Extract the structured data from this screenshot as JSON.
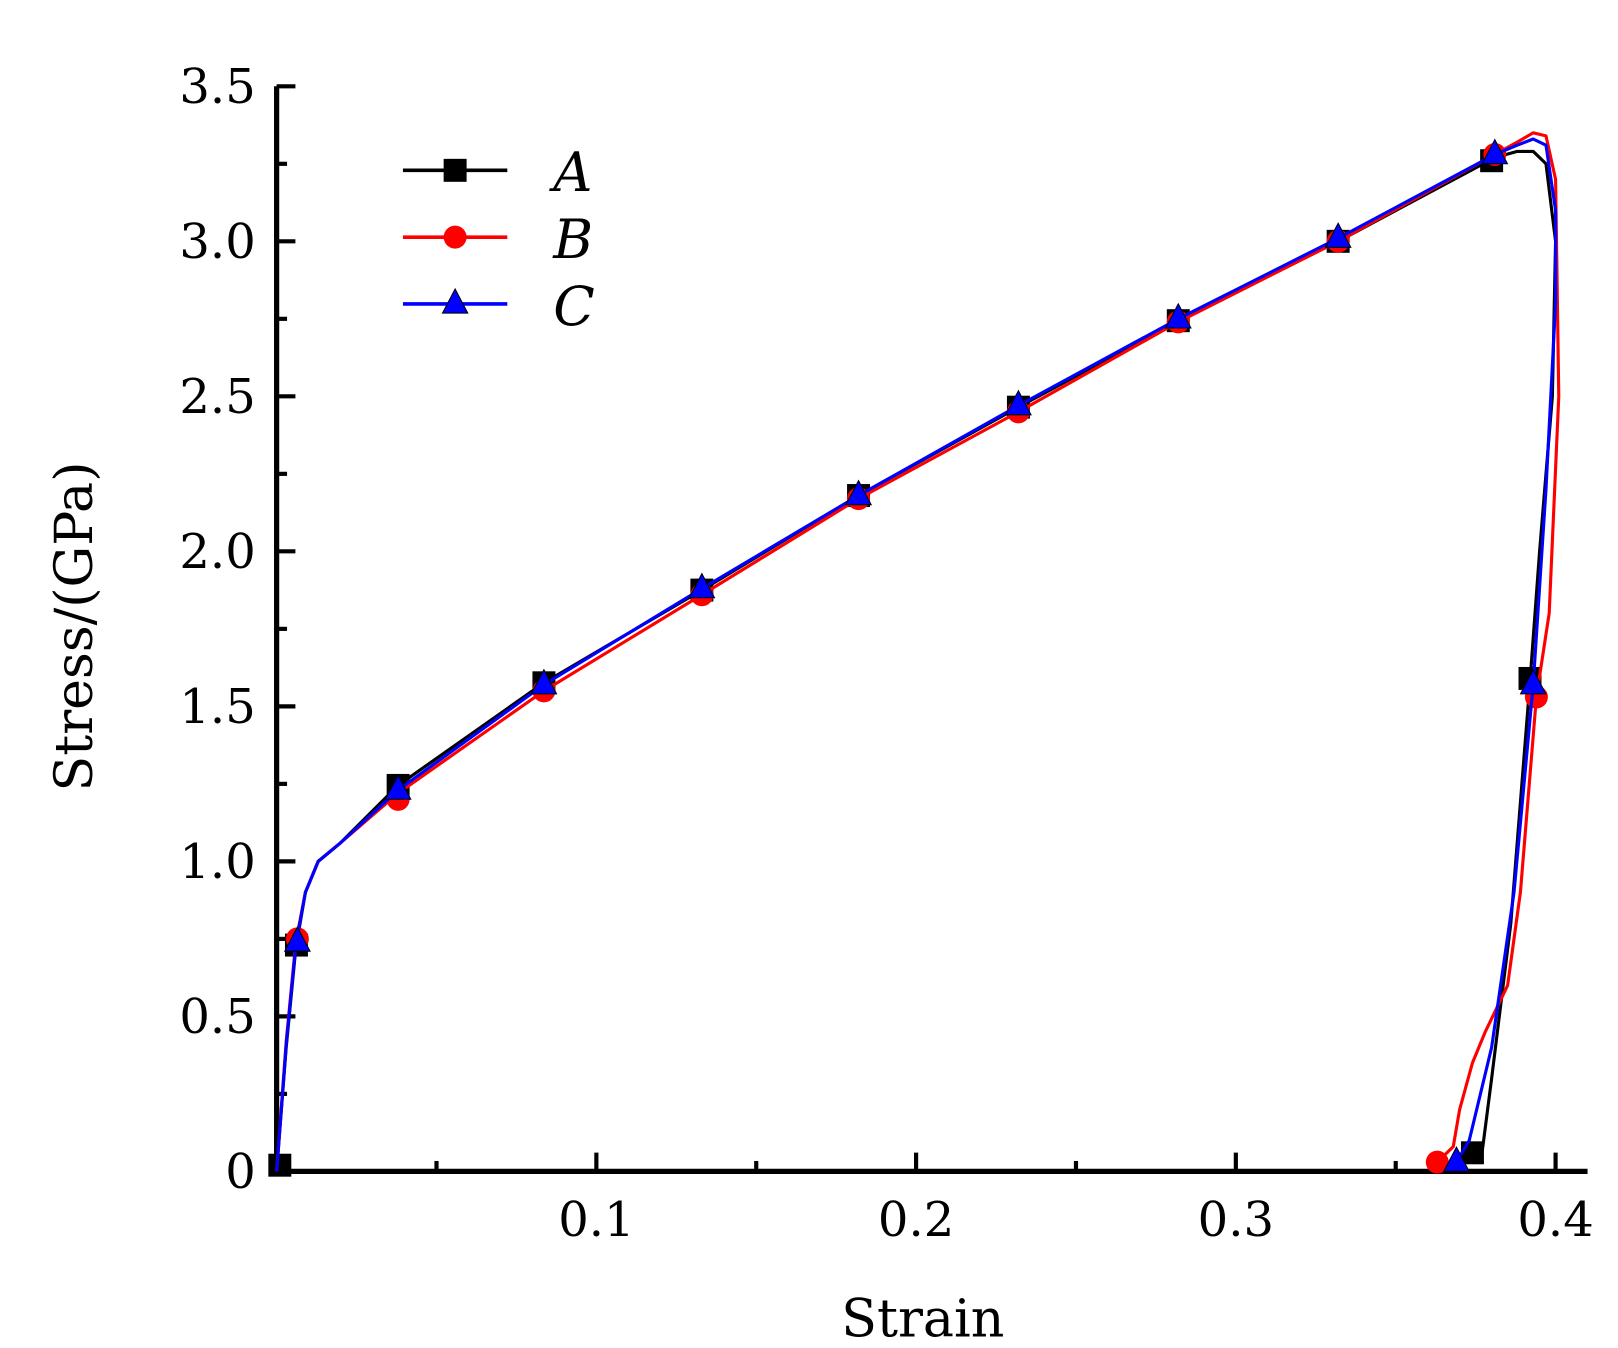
{
  "chart_data": {
    "type": "line",
    "title": "",
    "xlabel": "Strain",
    "ylabel": "Stress/(GPa)",
    "xlim": [
      0,
      0.41
    ],
    "ylim": [
      0,
      3.5
    ],
    "xticks": [
      0.1,
      0.2,
      0.3,
      0.4
    ],
    "xtick_labels": [
      "0.1",
      "0.2",
      "0.3",
      "0.4"
    ],
    "yticks": [
      0,
      0.5,
      1.0,
      1.5,
      2.0,
      2.5,
      3.0,
      3.5
    ],
    "ytick_labels": [
      "0",
      "0.5",
      "1.0",
      "1.5",
      "2.0",
      "2.5",
      "3.0",
      "3.5"
    ],
    "grid": false,
    "legend_position": "top-left",
    "series": [
      {
        "name": "A",
        "color": "#000000",
        "marker": "square",
        "line": [
          [
            0,
            0
          ],
          [
            0.003,
            0.4
          ],
          [
            0.006,
            0.72
          ],
          [
            0.009,
            0.9
          ],
          [
            0.013,
            1.0
          ],
          [
            0.02,
            1.06
          ],
          [
            0.038,
            1.245
          ],
          [
            0.0836,
            1.576
          ],
          [
            0.133,
            1.875
          ],
          [
            0.182,
            2.18
          ],
          [
            0.232,
            2.465
          ],
          [
            0.282,
            2.744
          ],
          [
            0.332,
            3.0
          ],
          [
            0.381,
            3.27
          ],
          [
            0.388,
            3.29
          ],
          [
            0.393,
            3.29
          ],
          [
            0.397,
            3.25
          ],
          [
            0.4,
            3.0
          ],
          [
            0.399,
            2.5
          ],
          [
            0.395,
            2.0
          ],
          [
            0.392,
            1.58
          ],
          [
            0.386,
            0.8
          ],
          [
            0.38,
            0.3
          ],
          [
            0.377,
            0.06
          ],
          [
            0.374,
            0.03
          ]
        ],
        "markers": [
          [
            0.001,
            0.02
          ],
          [
            0.0062,
            0.73
          ],
          [
            0.038,
            1.245
          ],
          [
            0.0836,
            1.576
          ],
          [
            0.133,
            1.875
          ],
          [
            0.182,
            2.18
          ],
          [
            0.232,
            2.465
          ],
          [
            0.282,
            2.744
          ],
          [
            0.332,
            3.0
          ],
          [
            0.38,
            3.26
          ],
          [
            0.392,
            1.59
          ],
          [
            0.374,
            0.06
          ]
        ]
      },
      {
        "name": "B",
        "color": "#ff0000",
        "marker": "circle",
        "line": [
          [
            0,
            0
          ],
          [
            0.003,
            0.42
          ],
          [
            0.006,
            0.74
          ],
          [
            0.009,
            0.9
          ],
          [
            0.013,
            1.0
          ],
          [
            0.02,
            1.06
          ],
          [
            0.038,
            1.22
          ],
          [
            0.0836,
            1.55
          ],
          [
            0.133,
            1.86
          ],
          [
            0.182,
            2.17
          ],
          [
            0.232,
            2.45
          ],
          [
            0.282,
            2.74
          ],
          [
            0.332,
            3.0
          ],
          [
            0.381,
            3.28
          ],
          [
            0.388,
            3.32
          ],
          [
            0.393,
            3.35
          ],
          [
            0.397,
            3.34
          ],
          [
            0.4,
            3.2
          ],
          [
            0.401,
            2.5
          ],
          [
            0.398,
            1.8
          ],
          [
            0.394,
            1.53
          ],
          [
            0.389,
            0.9
          ],
          [
            0.385,
            0.6
          ],
          [
            0.378,
            0.45
          ],
          [
            0.374,
            0.35
          ],
          [
            0.37,
            0.2
          ],
          [
            0.368,
            0.08
          ],
          [
            0.363,
            0.03
          ]
        ],
        "markers": [
          [
            0.0065,
            0.75
          ],
          [
            0.038,
            1.2
          ],
          [
            0.0836,
            1.55
          ],
          [
            0.133,
            1.86
          ],
          [
            0.182,
            2.17
          ],
          [
            0.232,
            2.45
          ],
          [
            0.282,
            2.74
          ],
          [
            0.332,
            3.0
          ],
          [
            0.381,
            3.28
          ],
          [
            0.394,
            1.53
          ],
          [
            0.363,
            0.03
          ]
        ]
      },
      {
        "name": "C",
        "color": "#0000ff",
        "marker": "triangle",
        "line": [
          [
            0,
            0
          ],
          [
            0.003,
            0.41
          ],
          [
            0.006,
            0.73
          ],
          [
            0.009,
            0.9
          ],
          [
            0.013,
            1.0
          ],
          [
            0.02,
            1.06
          ],
          [
            0.038,
            1.23
          ],
          [
            0.0836,
            1.57
          ],
          [
            0.133,
            1.88
          ],
          [
            0.182,
            2.18
          ],
          [
            0.232,
            2.47
          ],
          [
            0.282,
            2.75
          ],
          [
            0.332,
            3.01
          ],
          [
            0.381,
            3.28
          ],
          [
            0.388,
            3.31
          ],
          [
            0.393,
            3.33
          ],
          [
            0.397,
            3.31
          ],
          [
            0.4,
            3.1
          ],
          [
            0.4,
            2.8
          ],
          [
            0.397,
            2.2
          ],
          [
            0.393,
            1.57
          ],
          [
            0.387,
            0.9
          ],
          [
            0.38,
            0.4
          ],
          [
            0.373,
            0.1
          ],
          [
            0.369,
            0.03
          ]
        ],
        "markers": [
          [
            0.0065,
            0.74
          ],
          [
            0.038,
            1.23
          ],
          [
            0.0836,
            1.57
          ],
          [
            0.133,
            1.88
          ],
          [
            0.182,
            2.18
          ],
          [
            0.232,
            2.47
          ],
          [
            0.282,
            2.75
          ],
          [
            0.332,
            3.01
          ],
          [
            0.381,
            3.28
          ],
          [
            0.393,
            1.57
          ],
          [
            0.369,
            0.03
          ]
        ]
      }
    ]
  }
}
